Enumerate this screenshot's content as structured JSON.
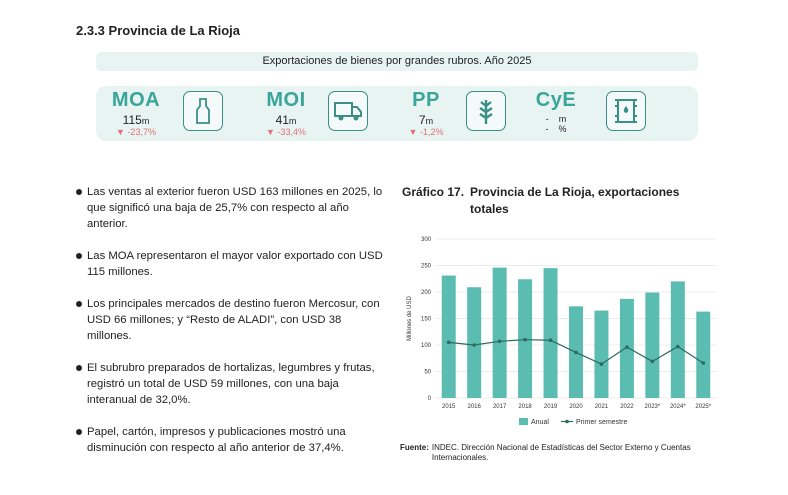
{
  "section_title": "2.3.3 Provincia de La Rioja",
  "banner": "Exportaciones de bienes por grandes rubros. Año 2025",
  "cards": [
    {
      "code": "MOA",
      "value": "115",
      "unit": "m",
      "change": "-23,7%",
      "icon": "bottle-icon"
    },
    {
      "code": "MOI",
      "value": "41",
      "unit": "m",
      "change": "-33,4%",
      "icon": "truck-icon"
    },
    {
      "code": "PP",
      "value": "7",
      "unit": "m",
      "change": "-1,2%",
      "icon": "wheat-icon"
    },
    {
      "code": "CyE",
      "value": "-",
      "unit": "m",
      "change_value": "-",
      "change_unit": "%",
      "icon": "oil-barrel-icon"
    }
  ],
  "colors": {
    "accent": "#3aa59a",
    "bar": "#5bbcb2",
    "line": "#2e6b5e",
    "negative": "#e0707a"
  },
  "bullets": [
    "Las ventas al exterior fueron USD 163 millones en 2025, lo que significó una baja de 25,7% con respecto al año anterior.",
    "Las MOA representaron el mayor valor exportado con USD 115 millones.",
    "Los principales mercados de destino fueron Mercosur, con USD 66 millones; y “Resto de ALADI”, con USD 38 millones.",
    "El subrubro preparados de hortalizas, legumbres y frutas, registró un total de USD 59 millones, con una baja interanual de 32,0%.",
    "Papel, cartón, impresos y publicaciones mostró una disminución con respecto al año anterior de 37,4%."
  ],
  "chart_title_label": "Gráfico 17.",
  "chart_title": "Provincia de La Rioja, exportaciones totales",
  "chart_data": {
    "type": "bar",
    "categories": [
      "2015",
      "2016",
      "2017",
      "2018",
      "2019",
      "2020",
      "2021",
      "2022",
      "2023*",
      "2024*",
      "2025*"
    ],
    "series": [
      {
        "name": "Anual",
        "type": "bar",
        "values": [
          231,
          209,
          246,
          224,
          245,
          173,
          165,
          187,
          199,
          220,
          163
        ]
      },
      {
        "name": "Primer semestre",
        "type": "line",
        "values": [
          105,
          100,
          107,
          110,
          109,
          86,
          64,
          96,
          69,
          97,
          66
        ]
      }
    ],
    "ylabel": "Millones de USD",
    "ylim": [
      0,
      300
    ],
    "yticks": [
      0,
      50,
      100,
      150,
      200,
      250,
      300
    ],
    "grid": true,
    "legend": "bottom"
  },
  "source_label": "Fuente:",
  "source": "INDEC. Dirección Nacional de Estadísticas del Sector Externo y Cuentas Internacionales."
}
